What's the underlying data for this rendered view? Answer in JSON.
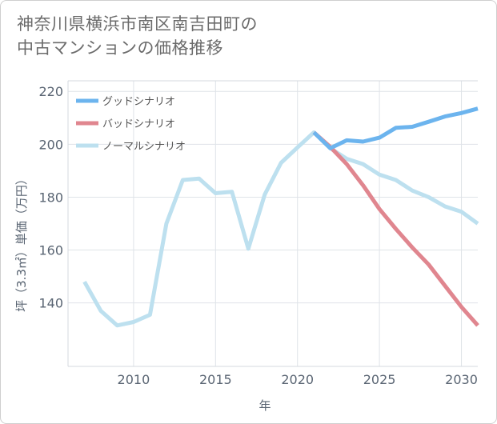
{
  "title_line1": "神奈川県横浜市南区南吉田町の",
  "title_line2": "中古マンションの価格推移",
  "chart_data": {
    "type": "line",
    "xlabel": "年",
    "ylabel": "坪（3.3㎡）単価（万円）",
    "xlim": [
      2006,
      2031
    ],
    "ylim": [
      116,
      224
    ],
    "x_ticks": [
      2010,
      2015,
      2020,
      2025,
      2030
    ],
    "y_ticks": [
      140,
      160,
      180,
      200,
      220
    ],
    "grid": true,
    "legend_position": "top-left",
    "series": [
      {
        "name": "グッドシナリオ",
        "color": "#6cb4ee",
        "x": [
          2021,
          2022,
          2023,
          2024,
          2025,
          2026,
          2027,
          2028,
          2029,
          2030,
          2031
        ],
        "y": [
          204.5,
          198.5,
          201.5,
          201.0,
          202.5,
          206.2,
          206.6,
          208.5,
          210.5,
          211.8,
          213.5
        ]
      },
      {
        "name": "バッドシナリオ",
        "color": "#e0868f",
        "x": [
          2021,
          2022,
          2023,
          2024,
          2025,
          2026,
          2027,
          2028,
          2029,
          2030,
          2031
        ],
        "y": [
          204.5,
          199.0,
          192.5,
          184.5,
          175.5,
          168.0,
          161.0,
          154.5,
          146.5,
          138.5,
          131.5
        ]
      },
      {
        "name": "ノーマルシナリオ",
        "color": "#bde0ef",
        "x": [
          2007,
          2008,
          2009,
          2010,
          2011,
          2012,
          2013,
          2014,
          2015,
          2016,
          2017,
          2018,
          2019,
          2020,
          2021,
          2022,
          2023,
          2024,
          2025,
          2026,
          2027,
          2028,
          2029,
          2030,
          2031
        ],
        "y": [
          148.0,
          137.0,
          131.5,
          132.8,
          135.5,
          170.0,
          186.5,
          187.0,
          181.5,
          182.0,
          160.5,
          181.0,
          193.0,
          198.8,
          204.5,
          198.5,
          194.5,
          192.5,
          188.5,
          186.5,
          182.5,
          180.0,
          176.5,
          174.5,
          170.0
        ]
      }
    ]
  }
}
